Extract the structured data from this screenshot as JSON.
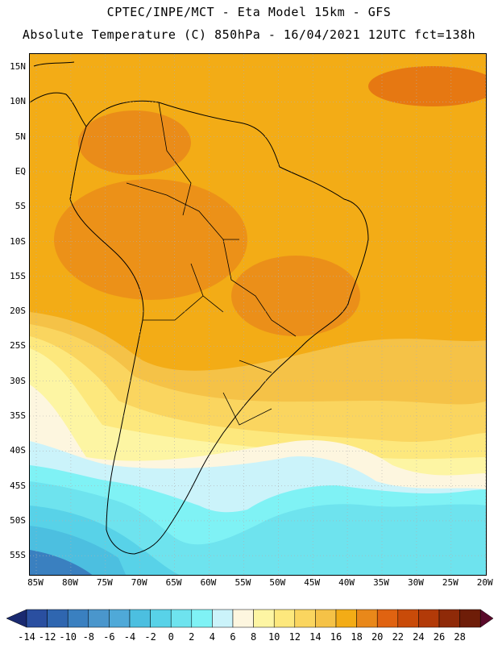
{
  "header": {
    "line1": "CPTEC/INPE/MCT -  Eta Model 15km - GFS",
    "line2": "Absolute Temperature (C) 850hPa - 16/04/2021 12UTC fct=138h"
  },
  "map": {
    "lat_ticks": [
      "15N",
      "10N",
      "5N",
      "EQ",
      "5S",
      "10S",
      "15S",
      "20S",
      "25S",
      "30S",
      "35S",
      "40S",
      "45S",
      "50S",
      "55S"
    ],
    "lon_ticks": [
      "85W",
      "80W",
      "75W",
      "70W",
      "65W",
      "60W",
      "55W",
      "50W",
      "45W",
      "40W",
      "35W",
      "30W",
      "25W",
      "20W"
    ],
    "grid": true
  },
  "colorbar": {
    "labels": [
      "-14",
      "-12",
      "-10",
      "-8",
      "-6",
      "-4",
      "-2",
      "0",
      "2",
      "4",
      "6",
      "8",
      "10",
      "12",
      "14",
      "16",
      "18",
      "20",
      "22",
      "24",
      "26",
      "28"
    ],
    "colors": [
      "#2a4fa0",
      "#2f66b0",
      "#3a80c0",
      "#4a96cc",
      "#4fa9d8",
      "#4cbfe0",
      "#58d2e8",
      "#6ee3ee",
      "#7ff2f5",
      "#cbf3fa",
      "#fdf6df",
      "#fdf5a3",
      "#fde87d",
      "#fad55f",
      "#f5c247",
      "#f3ac16",
      "#e9881a",
      "#e06311",
      "#c94b09",
      "#b23a08",
      "#8f2a08",
      "#6e1d08"
    ]
  }
}
